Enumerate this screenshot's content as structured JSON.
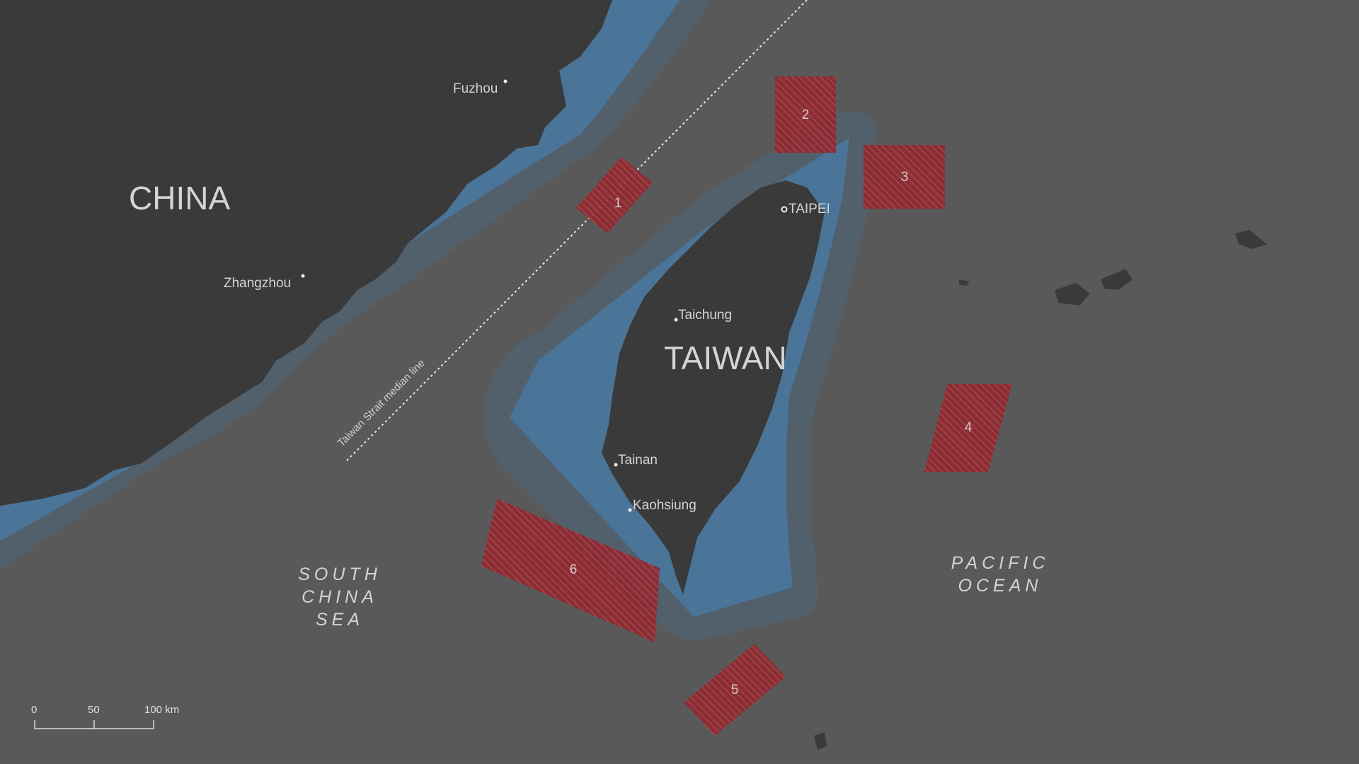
{
  "countries": {
    "china": "CHINA",
    "taiwan": "TAIWAN"
  },
  "cities": {
    "fuzhou": "Fuzhou",
    "zhangzhou": "Zhangzhou",
    "taipei": "TAIPEI",
    "taichung": "Taichung",
    "tainan": "Tainan",
    "kaohsiung": "Kaohsiung"
  },
  "seas": {
    "south_china_sea": [
      "SOUTH",
      "CHINA",
      "SEA"
    ],
    "pacific_ocean": [
      "PACIFIC",
      "OCEAN"
    ]
  },
  "median_line_label": "Taiwan Strait median line",
  "exercise_zones": [
    "1",
    "2",
    "3",
    "4",
    "5",
    "6"
  ],
  "scale_bar": {
    "ticks": [
      "0",
      "50",
      "100 km"
    ]
  },
  "colors": {
    "background": "#595959",
    "land": "#3a3a3a",
    "territorial_waters": "#4a7498",
    "contiguous_zone": "#52606c",
    "exercise_zone": "#c0343c"
  }
}
